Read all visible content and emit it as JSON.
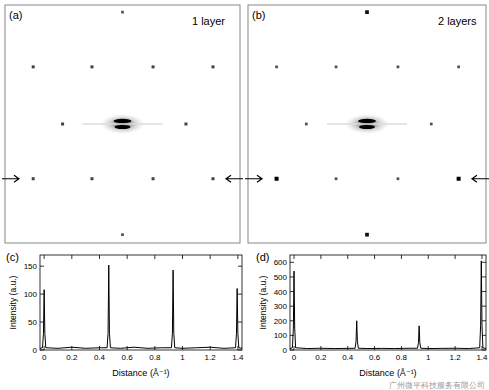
{
  "chart_data": [
    {
      "type": "scatter",
      "annotation": "(a)",
      "title": "1 layer",
      "tick_labels": false,
      "marker": "square",
      "color": "#000000",
      "xlim": [
        -1,
        1
      ],
      "ylim": [
        -1,
        1
      ],
      "arrow_y": -0.46,
      "x": [
        0,
        -0.76,
        -0.26,
        0.26,
        0.77,
        -0.51,
        0.54,
        -0.76,
        -0.26,
        0.26,
        0.77,
        0
      ],
      "values": [
        0.94,
        0.48,
        0.48,
        0.48,
        0.48,
        0,
        0,
        -0.46,
        -0.46,
        -0.46,
        -0.46,
        -0.93
      ],
      "intensity": [
        0.5,
        0.6,
        0.6,
        0.6,
        0.6,
        0.6,
        0.6,
        0.6,
        0.6,
        0.6,
        0.6,
        0.5
      ]
    },
    {
      "type": "scatter",
      "annotation": "(b)",
      "title": "2 layers",
      "tick_labels": false,
      "marker": "square",
      "color": "#000000",
      "xlim": [
        -1,
        1
      ],
      "ylim": [
        -1,
        1
      ],
      "arrow_y": -0.46,
      "x": [
        0,
        -0.76,
        -0.26,
        0.26,
        0.77,
        -0.51,
        0.54,
        -0.76,
        -0.26,
        0.26,
        0.77,
        0
      ],
      "values": [
        0.94,
        0.48,
        0.48,
        0.48,
        0.48,
        0,
        0,
        -0.46,
        -0.46,
        -0.46,
        -0.46,
        -0.93
      ],
      "intensity": [
        0.9,
        0.5,
        0.5,
        0.5,
        0.5,
        0.5,
        0.5,
        1.0,
        0.5,
        0.5,
        1.0,
        0.9
      ]
    },
    {
      "type": "line",
      "annotation": "(c)",
      "x_label": "Distance (Å⁻¹)",
      "y_label": "Intensity (a.u.)",
      "color": "#000000",
      "xlim": [
        -0.03,
        1.43
      ],
      "ylim": [
        0,
        170
      ],
      "xticks": [
        0,
        0.2,
        0.4,
        0.6,
        0.8,
        1,
        1.2,
        1.4
      ],
      "yticks": [
        0,
        50,
        100,
        150
      ],
      "x": [
        -0.03,
        -0.012,
        -0.005,
        0,
        0.005,
        0.012,
        0.1,
        0.2,
        0.3,
        0.4,
        0.455,
        0.462,
        0.467,
        0.472,
        0.479,
        0.55,
        0.65,
        0.75,
        0.85,
        0.92,
        0.927,
        0.932,
        0.937,
        0.944,
        1.0,
        1.1,
        1.2,
        1.3,
        1.383,
        1.39,
        1.395,
        1.4,
        1.407,
        1.43
      ],
      "values": [
        3,
        4,
        30,
        108,
        30,
        4,
        3,
        5,
        3,
        4,
        4,
        30,
        152,
        30,
        4,
        3,
        5,
        3,
        4,
        4,
        30,
        143,
        30,
        4,
        3,
        4,
        5,
        3,
        4,
        30,
        110,
        30,
        4,
        3
      ]
    },
    {
      "type": "line",
      "annotation": "(d)",
      "x_label": "Distance (Å⁻¹)",
      "y_label": "Intensity (a.u.)",
      "color": "#000000",
      "xlim": [
        -0.03,
        1.43
      ],
      "ylim": [
        0,
        650
      ],
      "xticks": [
        0,
        0.2,
        0.4,
        0.6,
        0.8,
        1,
        1.2,
        1.4
      ],
      "yticks": [
        0,
        100,
        200,
        300,
        400,
        500,
        600
      ],
      "x": [
        -0.03,
        -0.012,
        -0.005,
        0,
        0.005,
        0.012,
        0.1,
        0.2,
        0.3,
        0.4,
        0.455,
        0.462,
        0.467,
        0.472,
        0.479,
        0.55,
        0.65,
        0.75,
        0.85,
        0.92,
        0.927,
        0.932,
        0.937,
        0.944,
        1.0,
        1.1,
        1.2,
        1.3,
        1.383,
        1.39,
        1.395,
        1.4,
        1.407,
        1.43
      ],
      "values": [
        10,
        15,
        150,
        540,
        150,
        15,
        10,
        12,
        10,
        11,
        12,
        60,
        200,
        60,
        12,
        10,
        11,
        10,
        12,
        12,
        50,
        165,
        50,
        12,
        10,
        11,
        12,
        10,
        15,
        170,
        610,
        170,
        15,
        10
      ]
    }
  ],
  "watermark": "广州微平科技服务有限公司"
}
